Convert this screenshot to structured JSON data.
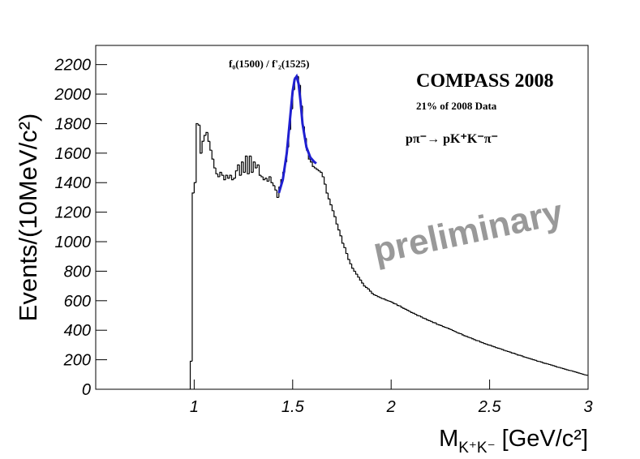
{
  "chart_data": {
    "type": "histogram",
    "y_label": "Events/(10MeV/c²)",
    "x_label": {
      "main": "M",
      "sub": "K⁺K⁻",
      "unit": "[GeV/c²]"
    },
    "annotations": {
      "experiment": "COMPASS 2008",
      "dataset": "21% of 2008 Data",
      "reaction": "pπ⁻→ pK⁺K⁻π⁻",
      "status": "preliminary",
      "peak": "f₀(1500) / f'₂(1525)"
    },
    "xlim": [
      0.5,
      3
    ],
    "ylim": [
      0,
      2330
    ],
    "xticks": [
      1,
      1.5,
      2,
      2.5,
      3
    ],
    "yticks": [
      0,
      200,
      400,
      600,
      800,
      1000,
      1200,
      1400,
      1600,
      1800,
      2000,
      2200
    ],
    "color": "#000000",
    "bins": [
      0.98,
      0.99,
      1,
      1.01,
      1.02,
      1.03,
      1.04,
      1.05,
      1.06,
      1.07,
      1.08,
      1.09,
      1.1,
      1.11,
      1.12,
      1.13,
      1.14,
      1.15,
      1.16,
      1.17,
      1.18,
      1.19,
      1.2,
      1.21,
      1.22,
      1.23,
      1.24,
      1.25,
      1.26,
      1.27,
      1.28,
      1.29,
      1.3,
      1.31,
      1.32,
      1.33,
      1.34,
      1.35,
      1.36,
      1.37,
      1.38,
      1.39,
      1.4,
      1.41,
      1.42,
      1.43,
      1.44,
      1.45,
      1.46,
      1.47,
      1.48,
      1.49,
      1.5,
      1.51,
      1.52,
      1.53,
      1.54,
      1.55,
      1.56,
      1.57,
      1.58,
      1.59,
      1.6,
      1.61,
      1.62,
      1.63,
      1.64,
      1.65,
      1.66,
      1.67,
      1.68,
      1.69,
      1.7,
      1.71,
      1.72,
      1.73,
      1.74,
      1.75,
      1.76,
      1.77,
      1.78,
      1.79,
      1.8,
      1.81,
      1.82,
      1.83,
      1.84,
      1.85,
      1.86,
      1.87,
      1.88,
      1.89,
      1.9,
      1.91,
      1.92,
      1.93,
      1.94,
      1.95,
      1.96,
      1.97,
      1.98,
      1.99,
      2,
      2.01,
      2.02,
      2.03,
      2.04,
      2.05,
      2.06,
      2.07,
      2.08,
      2.09,
      2.1,
      2.11,
      2.12,
      2.13,
      2.14,
      2.15,
      2.16,
      2.17,
      2.18,
      2.19,
      2.2,
      2.21,
      2.22,
      2.23,
      2.24,
      2.25,
      2.26,
      2.27,
      2.28,
      2.29,
      2.3,
      2.31,
      2.32,
      2.33,
      2.34,
      2.35,
      2.36,
      2.37,
      2.38,
      2.39,
      2.4,
      2.41,
      2.42,
      2.43,
      2.44,
      2.45,
      2.46,
      2.47,
      2.48,
      2.49,
      2.5,
      2.51,
      2.52,
      2.53,
      2.54,
      2.55,
      2.56,
      2.57,
      2.58,
      2.59,
      2.6,
      2.61,
      2.62,
      2.63,
      2.64,
      2.65,
      2.66,
      2.67,
      2.68,
      2.69,
      2.7,
      2.71,
      2.72,
      2.73,
      2.74,
      2.75,
      2.76,
      2.77,
      2.78,
      2.79,
      2.8,
      2.81,
      2.82,
      2.83,
      2.84,
      2.85,
      2.86,
      2.87,
      2.88,
      2.89,
      2.9,
      2.91,
      2.92,
      2.93,
      2.94,
      2.95,
      2.96,
      2.97,
      2.98,
      2.99,
      3
    ],
    "counts": [
      190,
      1330,
      1400,
      1800,
      1790,
      1600,
      1680,
      1720,
      1740,
      1680,
      1620,
      1560,
      1500,
      1460,
      1440,
      1470,
      1450,
      1420,
      1450,
      1430,
      1450,
      1420,
      1430,
      1480,
      1520,
      1450,
      1540,
      1470,
      1580,
      1460,
      1580,
      1470,
      1540,
      1500,
      1520,
      1450,
      1440,
      1420,
      1430,
      1410,
      1440,
      1400,
      1380,
      1350,
      1300,
      1370,
      1420,
      1470,
      1540,
      1640,
      1760,
      1900,
      2030,
      2110,
      2120,
      2060,
      1920,
      1780,
      1700,
      1620,
      1560,
      1540,
      1510,
      1500,
      1490,
      1480,
      1470,
      1440,
      1390,
      1330,
      1290,
      1250,
      1210,
      1170,
      1120,
      1080,
      1040,
      990,
      960,
      920,
      880,
      850,
      820,
      800,
      780,
      760,
      740,
      720,
      700,
      690,
      680,
      665,
      650,
      640,
      635,
      628,
      622,
      615,
      612,
      605,
      600,
      596,
      590,
      582,
      578,
      568,
      565,
      555,
      548,
      542,
      535,
      528,
      520,
      515,
      508,
      500,
      497,
      490,
      482,
      478,
      470,
      465,
      460,
      452,
      450,
      440,
      436,
      432,
      425,
      420,
      416,
      410,
      405,
      398,
      392,
      385,
      380,
      376,
      368,
      362,
      358,
      352,
      348,
      342,
      336,
      330,
      328,
      320,
      316,
      310,
      306,
      300,
      298,
      292,
      288,
      282,
      278,
      275,
      270,
      264,
      260,
      256,
      252,
      246,
      244,
      238,
      232,
      230,
      226,
      220,
      216,
      212,
      208,
      204,
      200,
      196,
      190,
      188,
      184,
      178,
      175,
      172,
      168,
      164,
      160,
      156,
      150,
      148,
      144,
      140,
      136,
      132,
      128,
      126,
      122,
      118,
      114,
      110,
      106,
      102,
      98,
      95
    ],
    "fit": {
      "color": "#1f1fd0",
      "x": [
        1.43,
        1.45,
        1.47,
        1.49,
        1.5,
        1.51,
        1.52,
        1.53,
        1.54,
        1.55,
        1.57,
        1.59,
        1.61,
        1.62
      ],
      "values": [
        1330,
        1420,
        1600,
        1880,
        2020,
        2100,
        2120,
        2070,
        1950,
        1800,
        1640,
        1570,
        1540,
        1530
      ]
    }
  }
}
